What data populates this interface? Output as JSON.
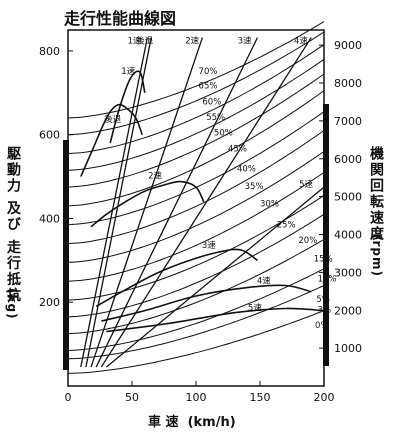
{
  "chart_data": {
    "type": "line",
    "title": "走行性能曲線図",
    "xlabel": "車 速  (km/h)",
    "ylabel_left": "駆動力 及び 走行抵抗",
    "ylabel_left_unit": "(kg)",
    "ylabel_right": "機関回転速度",
    "ylabel_right_unit": "(rpm)",
    "x_ticks": [
      "0",
      "50",
      "100",
      "150",
      "200"
    ],
    "xlim": [
      0,
      200
    ],
    "y_left_ticks": [
      "200",
      "400",
      "600",
      "800"
    ],
    "ylim_left": [
      0,
      850
    ],
    "y_right_ticks": [
      "1000",
      "2000",
      "3000",
      "4000",
      "5000",
      "6000",
      "7000",
      "8000",
      "9000"
    ],
    "ylim_right": [
      0,
      9400
    ],
    "gear_speed_lines": [
      {
        "label": "1速",
        "label_at": [
          52,
          9050
        ],
        "points": [
          [
            10,
            500
          ],
          [
            62,
            9200
          ]
        ]
      },
      {
        "label": "後退",
        "label_at": [
          60,
          9050
        ],
        "points": [
          [
            14,
            500
          ],
          [
            65,
            9200
          ]
        ]
      },
      {
        "label": "2速",
        "label_at": [
          97,
          9050
        ],
        "points": [
          [
            18,
            500
          ],
          [
            105,
            9200
          ]
        ]
      },
      {
        "label": "3速",
        "label_at": [
          138,
          9050
        ],
        "points": [
          [
            22,
            500
          ],
          [
            148,
            9200
          ]
        ]
      },
      {
        "label": "4速",
        "label_at": [
          182,
          9050
        ],
        "points": [
          [
            26,
            500
          ],
          [
            190,
            9200
          ]
        ]
      },
      {
        "label": "5速",
        "label_at": [
          186,
          5250
        ],
        "points": [
          [
            30,
            500
          ],
          [
            200,
            5250
          ]
        ]
      }
    ],
    "resistance_curves": [
      {
        "name": "70%",
        "y0": 640,
        "y200": 870,
        "label_at": [
          102,
          745
        ]
      },
      {
        "name": "65%",
        "y0": 600,
        "y200": 845,
        "label_at": [
          102,
          710
        ]
      },
      {
        "name": "60%",
        "y0": 555,
        "y200": 815,
        "label_at": [
          105,
          672
        ]
      },
      {
        "name": "55%",
        "y0": 515,
        "y200": 780,
        "label_at": [
          108,
          635
        ]
      },
      {
        "name": "50%",
        "y0": 475,
        "y200": 745,
        "label_at": [
          114,
          598
        ]
      },
      {
        "name": "45%",
        "y0": 430,
        "y200": 705,
        "label_at": [
          125,
          560
        ]
      },
      {
        "name": "40%",
        "y0": 385,
        "y200": 655,
        "label_at": [
          132,
          512
        ]
      },
      {
        "name": "35%",
        "y0": 340,
        "y200": 610,
        "label_at": [
          138,
          470
        ]
      },
      {
        "name": "30%",
        "y0": 295,
        "y200": 560,
        "label_at": [
          150,
          428
        ]
      },
      {
        "name": "25%",
        "y0": 250,
        "y200": 510,
        "label_at": [
          163,
          378
        ]
      },
      {
        "name": "20%",
        "y0": 205,
        "y200": 455,
        "label_at": [
          180,
          342
        ]
      },
      {
        "name": "15%",
        "y0": 165,
        "y200": 410,
        "label_at": [
          192,
          297
        ]
      },
      {
        "name": "10%",
        "y0": 125,
        "y200": 350,
        "label_at": [
          195,
          250
        ]
      },
      {
        "name": "5%",
        "y0": 85,
        "y200": 280,
        "label_at": [
          194,
          200
        ]
      },
      {
        "name": "3%",
        "y0": 65,
        "y200": 240,
        "label_at": [
          195,
          175
        ]
      },
      {
        "name": "0%",
        "y0": 30,
        "y200": 180,
        "label_at": [
          193,
          138
        ]
      }
    ],
    "tractive_force_curves": [
      {
        "label": "1速",
        "label_at": [
          47,
          745
        ],
        "points": [
          [
            33,
            580
          ],
          [
            38,
            640
          ],
          [
            43,
            690
          ],
          [
            48,
            730
          ],
          [
            53,
            750
          ],
          [
            57,
            745
          ],
          [
            60,
            700
          ]
        ]
      },
      {
        "label": "後退",
        "label_at": [
          35,
          630
        ],
        "points": [
          [
            10,
            500
          ],
          [
            20,
            570
          ],
          [
            27,
            620
          ],
          [
            33,
            655
          ],
          [
            40,
            672
          ],
          [
            47,
            660
          ],
          [
            53,
            640
          ],
          [
            58,
            600
          ]
        ]
      },
      {
        "label": "2速",
        "label_at": [
          68,
          495
        ],
        "points": [
          [
            18,
            380
          ],
          [
            30,
            410
          ],
          [
            45,
            440
          ],
          [
            60,
            465
          ],
          [
            75,
            480
          ],
          [
            88,
            488
          ],
          [
            100,
            475
          ],
          [
            106,
            440
          ]
        ]
      },
      {
        "label": "3速",
        "label_at": [
          110,
          330
        ],
        "points": [
          [
            22,
            190
          ],
          [
            45,
            230
          ],
          [
            70,
            270
          ],
          [
            95,
            300
          ],
          [
            118,
            320
          ],
          [
            135,
            325
          ],
          [
            148,
            300
          ]
        ]
      },
      {
        "label": "4速",
        "label_at": [
          153,
          245
        ],
        "points": [
          [
            26,
            155
          ],
          [
            60,
            180
          ],
          [
            100,
            215
          ],
          [
            140,
            235
          ],
          [
            170,
            240
          ],
          [
            190,
            225
          ]
        ]
      },
      {
        "label": "5速",
        "label_at": [
          146,
          180
        ],
        "points": [
          [
            30,
            130
          ],
          [
            80,
            150
          ],
          [
            130,
            175
          ],
          [
            170,
            185
          ],
          [
            200,
            180
          ]
        ]
      }
    ]
  }
}
